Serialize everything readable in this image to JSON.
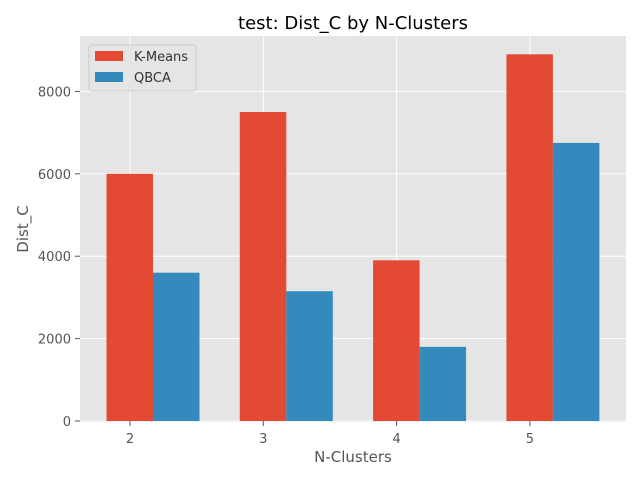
{
  "chart_data": {
    "type": "bar",
    "title": "test: Dist_C by N-Clusters",
    "xlabel": "N-Clusters",
    "ylabel": "Dist_C",
    "categories": [
      "2",
      "3",
      "4",
      "5"
    ],
    "series": [
      {
        "name": "K-Means",
        "values": [
          6000,
          7500,
          3900,
          8900
        ],
        "color": "#E24A33"
      },
      {
        "name": "QBCA",
        "values": [
          3600,
          3150,
          1800,
          6750
        ],
        "color": "#348ABD"
      }
    ],
    "yticks": [
      0,
      2000,
      4000,
      6000,
      8000
    ],
    "ylim": [
      0,
      9345
    ],
    "grid": true,
    "legend_position": "top-left",
    "background": "#E5E5E5"
  }
}
